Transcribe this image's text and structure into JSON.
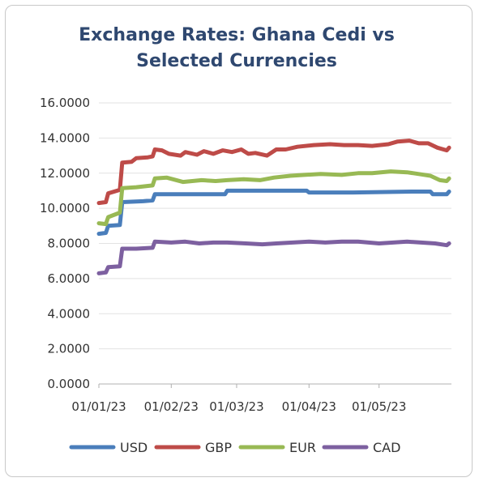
{
  "chart_data": {
    "type": "line",
    "title_lines": [
      "Exchange Rates: Ghana Cedi vs",
      "Selected Currencies"
    ],
    "xlabel": "",
    "ylabel": "",
    "ylim": [
      0,
      16
    ],
    "yticks": [
      "0.0000",
      "2.0000",
      "4.0000",
      "6.0000",
      "8.0000",
      "10.0000",
      "12.0000",
      "14.0000",
      "16.0000"
    ],
    "y_tick_values": [
      0,
      2,
      4,
      6,
      8,
      10,
      12,
      14,
      16
    ],
    "xlim": [
      "2023-01-01",
      "2023-06-01"
    ],
    "xticks": [
      "01/01/23",
      "01/02/23",
      "01/03/23",
      "01/04/23",
      "01/05/23"
    ],
    "x_tick_dates": [
      "2023-01-01",
      "2023-02-01",
      "2023-03-01",
      "2023-04-01",
      "2023-05-01"
    ],
    "grid": "horizontal",
    "legend": "bottom",
    "series": [
      {
        "name": "USD",
        "color": "#4a7ebb",
        "points": [
          [
            "2023-01-01",
            8.55
          ],
          [
            "2023-01-04",
            8.6
          ],
          [
            "2023-01-05",
            9.0
          ],
          [
            "2023-01-10",
            9.05
          ],
          [
            "2023-01-11",
            10.35
          ],
          [
            "2023-01-20",
            10.4
          ],
          [
            "2023-01-24",
            10.45
          ],
          [
            "2023-01-25",
            10.8
          ],
          [
            "2023-02-10",
            10.8
          ],
          [
            "2023-02-24",
            10.8
          ],
          [
            "2023-02-25",
            11.0
          ],
          [
            "2023-03-15",
            11.0
          ],
          [
            "2023-03-31",
            11.0
          ],
          [
            "2023-04-01",
            10.9
          ],
          [
            "2023-04-20",
            10.9
          ],
          [
            "2023-05-15",
            10.95
          ],
          [
            "2023-05-23",
            10.95
          ],
          [
            "2023-05-24",
            10.8
          ],
          [
            "2023-05-30",
            10.8
          ],
          [
            "2023-05-31",
            10.95
          ]
        ]
      },
      {
        "name": "GBP",
        "color": "#be4b48",
        "points": [
          [
            "2023-01-01",
            10.3
          ],
          [
            "2023-01-04",
            10.35
          ],
          [
            "2023-01-05",
            10.85
          ],
          [
            "2023-01-10",
            11.05
          ],
          [
            "2023-01-11",
            12.6
          ],
          [
            "2023-01-15",
            12.65
          ],
          [
            "2023-01-17",
            12.85
          ],
          [
            "2023-01-22",
            12.9
          ],
          [
            "2023-01-24",
            12.95
          ],
          [
            "2023-01-25",
            13.35
          ],
          [
            "2023-01-28",
            13.3
          ],
          [
            "2023-01-31",
            13.1
          ],
          [
            "2023-02-05",
            13.0
          ],
          [
            "2023-02-07",
            13.2
          ],
          [
            "2023-02-12",
            13.05
          ],
          [
            "2023-02-15",
            13.25
          ],
          [
            "2023-02-19",
            13.1
          ],
          [
            "2023-02-23",
            13.3
          ],
          [
            "2023-02-27",
            13.2
          ],
          [
            "2023-03-03",
            13.35
          ],
          [
            "2023-03-06",
            13.1
          ],
          [
            "2023-03-09",
            13.15
          ],
          [
            "2023-03-14",
            13.0
          ],
          [
            "2023-03-18",
            13.35
          ],
          [
            "2023-03-22",
            13.35
          ],
          [
            "2023-03-27",
            13.5
          ],
          [
            "2023-04-03",
            13.6
          ],
          [
            "2023-04-10",
            13.65
          ],
          [
            "2023-04-16",
            13.6
          ],
          [
            "2023-04-22",
            13.6
          ],
          [
            "2023-04-28",
            13.55
          ],
          [
            "2023-05-05",
            13.65
          ],
          [
            "2023-05-09",
            13.8
          ],
          [
            "2023-05-14",
            13.85
          ],
          [
            "2023-05-18",
            13.7
          ],
          [
            "2023-05-22",
            13.7
          ],
          [
            "2023-05-26",
            13.45
          ],
          [
            "2023-05-30",
            13.3
          ],
          [
            "2023-05-31",
            13.45
          ]
        ]
      },
      {
        "name": "EUR",
        "color": "#98b954",
        "points": [
          [
            "2023-01-01",
            9.15
          ],
          [
            "2023-01-04",
            9.1
          ],
          [
            "2023-01-05",
            9.5
          ],
          [
            "2023-01-10",
            9.75
          ],
          [
            "2023-01-11",
            11.15
          ],
          [
            "2023-01-17",
            11.2
          ],
          [
            "2023-01-24",
            11.3
          ],
          [
            "2023-01-25",
            11.7
          ],
          [
            "2023-01-30",
            11.75
          ],
          [
            "2023-02-06",
            11.5
          ],
          [
            "2023-02-14",
            11.6
          ],
          [
            "2023-02-20",
            11.55
          ],
          [
            "2023-02-25",
            11.6
          ],
          [
            "2023-03-04",
            11.65
          ],
          [
            "2023-03-11",
            11.6
          ],
          [
            "2023-03-17",
            11.75
          ],
          [
            "2023-03-24",
            11.85
          ],
          [
            "2023-03-30",
            11.9
          ],
          [
            "2023-04-06",
            11.95
          ],
          [
            "2023-04-15",
            11.9
          ],
          [
            "2023-04-22",
            12.0
          ],
          [
            "2023-04-28",
            12.0
          ],
          [
            "2023-05-06",
            12.1
          ],
          [
            "2023-05-13",
            12.05
          ],
          [
            "2023-05-18",
            11.95
          ],
          [
            "2023-05-23",
            11.85
          ],
          [
            "2023-05-27",
            11.6
          ],
          [
            "2023-05-30",
            11.55
          ],
          [
            "2023-05-31",
            11.7
          ]
        ]
      },
      {
        "name": "CAD",
        "color": "#7d60a0",
        "points": [
          [
            "2023-01-01",
            6.3
          ],
          [
            "2023-01-04",
            6.35
          ],
          [
            "2023-01-05",
            6.65
          ],
          [
            "2023-01-10",
            6.7
          ],
          [
            "2023-01-11",
            7.7
          ],
          [
            "2023-01-17",
            7.7
          ],
          [
            "2023-01-24",
            7.75
          ],
          [
            "2023-01-25",
            8.1
          ],
          [
            "2023-02-01",
            8.05
          ],
          [
            "2023-02-07",
            8.1
          ],
          [
            "2023-02-13",
            8.0
          ],
          [
            "2023-02-19",
            8.05
          ],
          [
            "2023-02-25",
            8.05
          ],
          [
            "2023-03-05",
            8.0
          ],
          [
            "2023-03-12",
            7.95
          ],
          [
            "2023-03-18",
            8.0
          ],
          [
            "2023-03-25",
            8.05
          ],
          [
            "2023-04-01",
            8.1
          ],
          [
            "2023-04-08",
            8.05
          ],
          [
            "2023-04-15",
            8.1
          ],
          [
            "2023-04-22",
            8.1
          ],
          [
            "2023-05-01",
            8.0
          ],
          [
            "2023-05-07",
            8.05
          ],
          [
            "2023-05-13",
            8.1
          ],
          [
            "2023-05-19",
            8.05
          ],
          [
            "2023-05-25",
            8.0
          ],
          [
            "2023-05-30",
            7.9
          ],
          [
            "2023-05-31",
            8.0
          ]
        ]
      }
    ]
  }
}
